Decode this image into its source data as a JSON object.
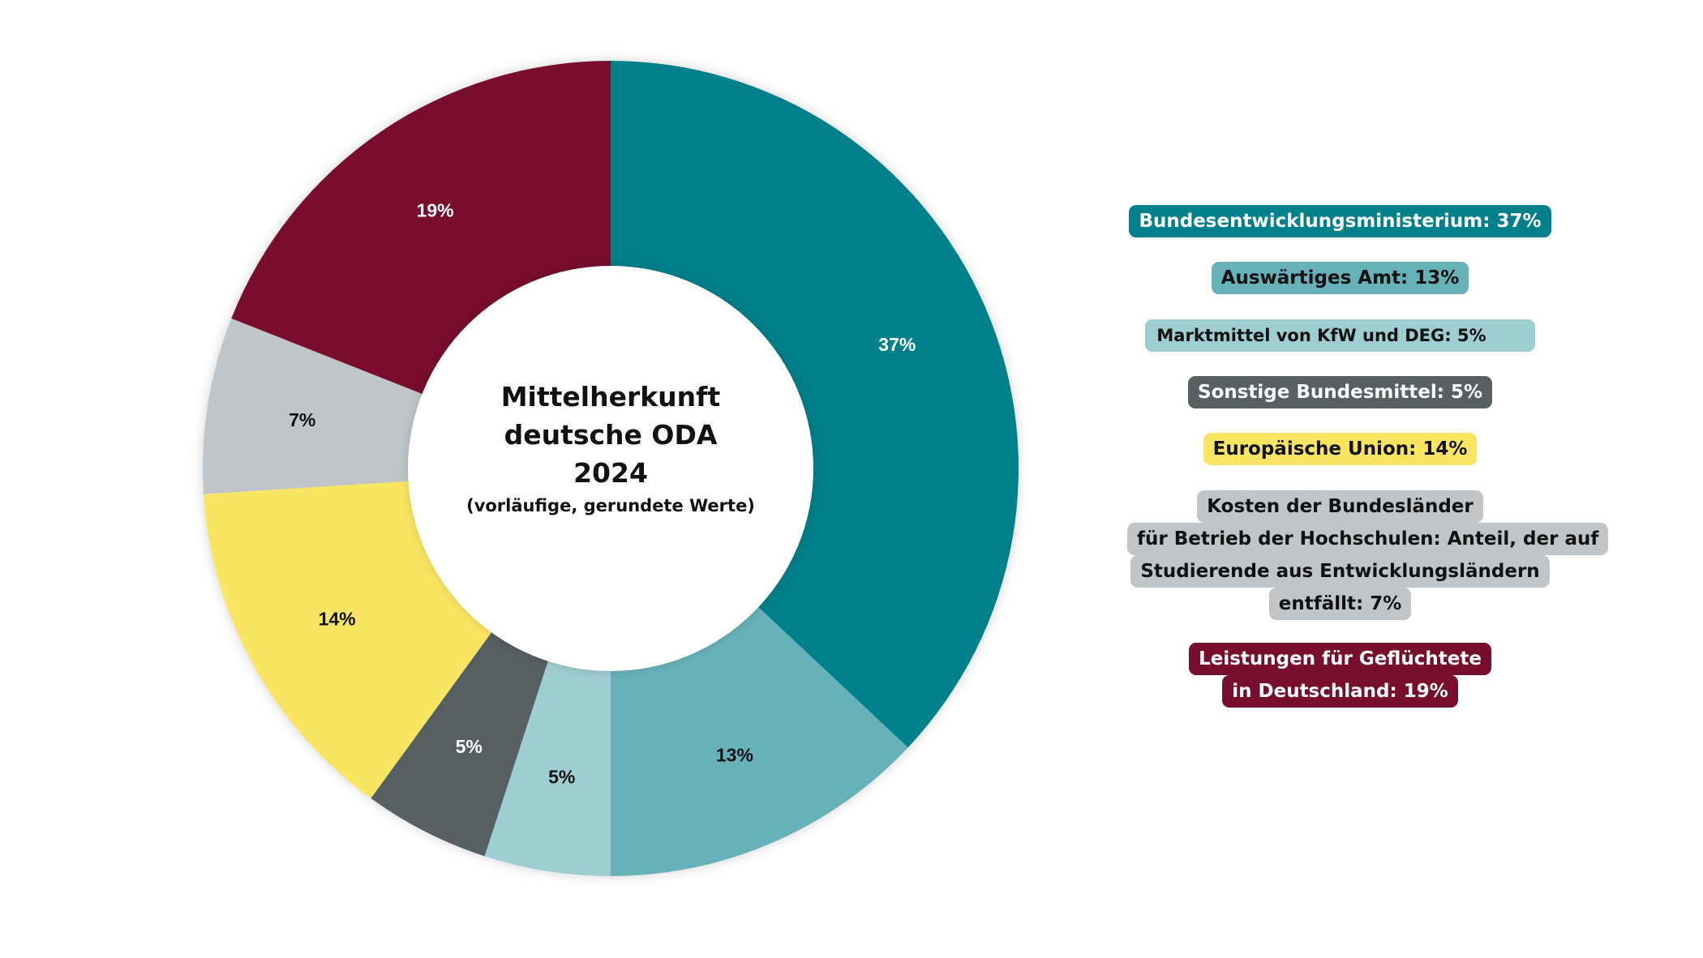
{
  "chart_data": {
    "type": "pie",
    "donut": true,
    "title": "Mittelherkunft deutsche ODA 2024",
    "title_lines": [
      "Mittelherkunft",
      "deutsche ODA",
      "2024"
    ],
    "subtitle": "(vorläufige, gerundete Werte)",
    "unit": "%",
    "start_angle": "top, clockwise",
    "slices": [
      {
        "label_lines": [
          "Bundesentwicklungsministerium: 37%"
        ],
        "value": 37,
        "data_label": "37%",
        "color": "#00808A",
        "text_color": "#ffffff"
      },
      {
        "label_lines": [
          "Auswärtiges Amt: 13%"
        ],
        "value": 13,
        "data_label": "13%",
        "color": "#66B2B8",
        "text_color": "#111111"
      },
      {
        "label_lines": [
          "Marktmittel von KfW und DEG: 5%"
        ],
        "value": 5,
        "data_label": "5%",
        "color": "#9ECDD2",
        "text_color": "#111111"
      },
      {
        "label_lines": [
          "Sonstige Bundesmittel: 5%"
        ],
        "value": 5,
        "data_label": "5%",
        "color": "#575F62",
        "text_color": "#ffffff"
      },
      {
        "label_lines": [
          "Europäische Union: 14%"
        ],
        "value": 14,
        "data_label": "14%",
        "color": "#FAE562",
        "text_color": "#111111"
      },
      {
        "label_lines": [
          "Kosten der Bundesländer",
          "für Betrieb der Hochschulen: Anteil, der auf",
          "Studierende aus Entwicklungsländern",
          "entfällt: 7%"
        ],
        "value": 7,
        "data_label": "7%",
        "color": "#BFC5C8",
        "text_color": "#111111"
      },
      {
        "label_lines": [
          "Leistungen für Geflüchtete",
          "in Deutschland: 19%"
        ],
        "value": 19,
        "data_label": "19%",
        "color": "#780E2D",
        "text_color": "#ffffff"
      }
    ],
    "legend_placement": "right"
  }
}
